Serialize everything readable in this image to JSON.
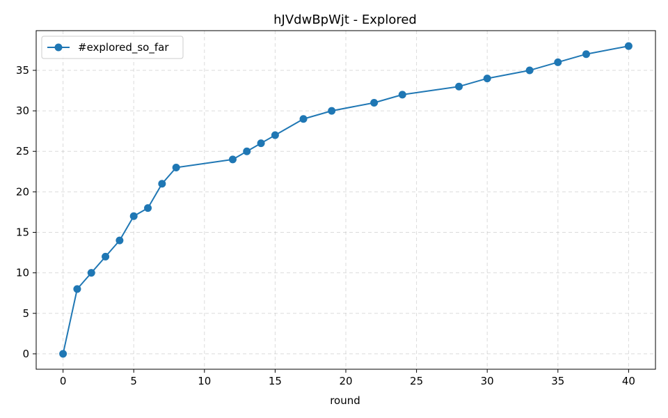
{
  "chart_data": {
    "type": "line",
    "title": "hJVdwBpWjt - Explored",
    "xlabel": "round",
    "ylabel": "",
    "xlim": [
      -1.9,
      41.9
    ],
    "ylim": [
      -1.9,
      39.9
    ],
    "xticks": [
      0,
      5,
      10,
      15,
      20,
      25,
      30,
      35,
      40
    ],
    "yticks": [
      0,
      5,
      10,
      15,
      20,
      25,
      30,
      35
    ],
    "grid": true,
    "legend_position": "top-left",
    "series": [
      {
        "name": "#explored_so_far",
        "color": "#1f77b4",
        "marker": "circle",
        "x": [
          0,
          1,
          2,
          3,
          4,
          5,
          6,
          7,
          8,
          12,
          13,
          14,
          15,
          17,
          19,
          22,
          24,
          28,
          30,
          33,
          35,
          37,
          40
        ],
        "y": [
          0,
          8,
          10,
          12,
          14,
          17,
          18,
          21,
          23,
          24,
          25,
          26,
          27,
          29,
          30,
          31,
          32,
          33,
          34,
          35,
          36,
          37,
          38
        ]
      }
    ]
  }
}
